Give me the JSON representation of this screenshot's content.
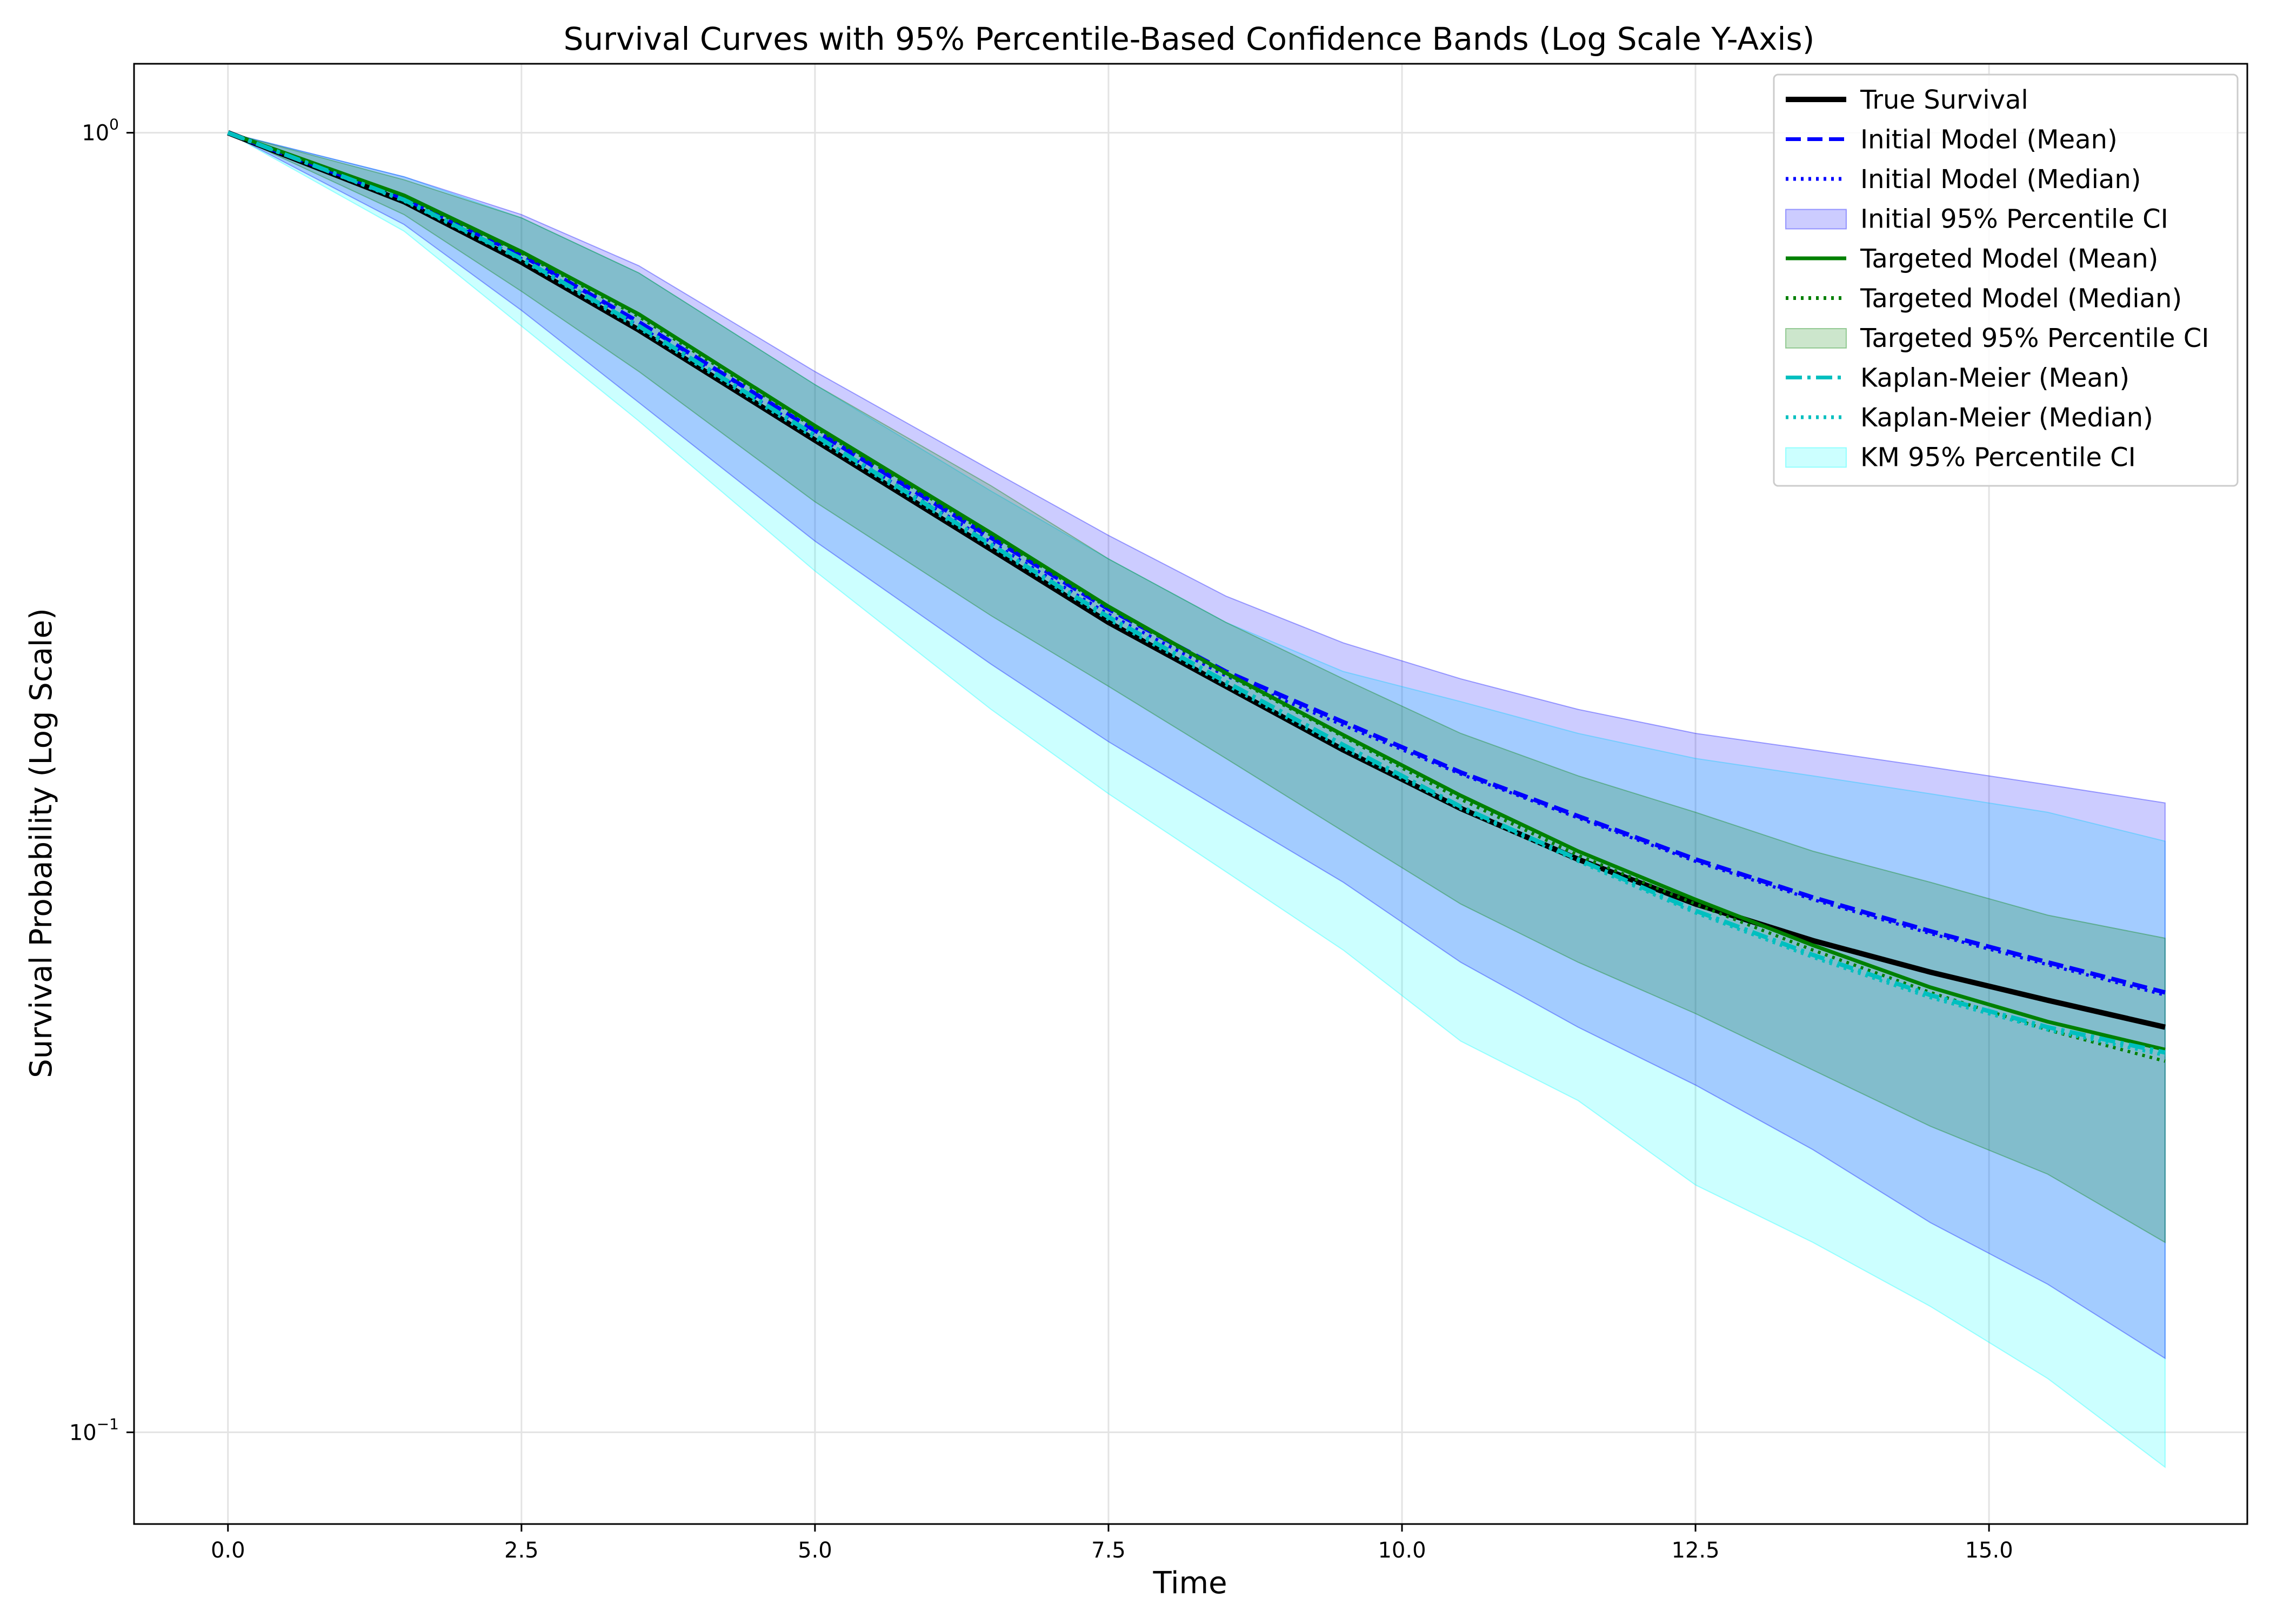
{
  "chart_data": {
    "type": "line",
    "title": "Survival Curves with 95% Percentile-Based Confidence Bands (Log Scale Y-Axis)",
    "xlabel": "Time",
    "ylabel": "Survival Probability (Log Scale)",
    "xlim": [
      -0.8,
      17.2
    ],
    "ylim": [
      0.085,
      1.13
    ],
    "yscale": "log",
    "grid": true,
    "legend_position": "upper right",
    "x_ticks": [
      {
        "value": 0,
        "label": "0.0"
      },
      {
        "value": 2.5,
        "label": "2.5"
      },
      {
        "value": 5,
        "label": "5.0"
      },
      {
        "value": 7.5,
        "label": "7.5"
      },
      {
        "value": 10,
        "label": "10.0"
      },
      {
        "value": 12.5,
        "label": "12.5"
      },
      {
        "value": 15,
        "label": "15.0"
      }
    ],
    "y_ticks": [
      {
        "value": 1.0,
        "base": "10",
        "exp": "0"
      },
      {
        "value": 0.1,
        "base": "10",
        "exp": "−1"
      }
    ],
    "x": [
      0,
      1.5,
      2.5,
      3.5,
      5,
      6.5,
      7.5,
      8.5,
      9.5,
      10.5,
      11.5,
      12.5,
      13.5,
      14.5,
      15.5,
      16.5
    ],
    "bands": [
      {
        "name": "KM 95% Percentile CI",
        "color": "#00ffff",
        "opacity": 0.2,
        "lower": [
          1.0,
          0.84,
          0.71,
          0.6,
          0.46,
          0.36,
          0.31,
          0.27,
          0.235,
          0.2,
          0.18,
          0.155,
          0.14,
          0.125,
          0.11,
          0.094
        ],
        "upper": [
          1.0,
          0.925,
          0.86,
          0.78,
          0.64,
          0.53,
          0.47,
          0.42,
          0.385,
          0.365,
          0.345,
          0.33,
          0.32,
          0.31,
          0.3,
          0.285
        ]
      },
      {
        "name": "Initial 95% Percentile CI",
        "color": "#0000ff",
        "opacity": 0.2,
        "lower": [
          1.0,
          0.85,
          0.73,
          0.62,
          0.485,
          0.39,
          0.34,
          0.3,
          0.265,
          0.23,
          0.205,
          0.185,
          0.165,
          0.145,
          0.13,
          0.114
        ],
        "upper": [
          1.0,
          0.925,
          0.865,
          0.79,
          0.655,
          0.55,
          0.49,
          0.44,
          0.405,
          0.38,
          0.36,
          0.345,
          0.335,
          0.325,
          0.315,
          0.305
        ]
      },
      {
        "name": "Targeted 95% Percentile CI",
        "color": "#008000",
        "opacity": 0.2,
        "lower": [
          1.0,
          0.865,
          0.755,
          0.655,
          0.52,
          0.425,
          0.375,
          0.33,
          0.29,
          0.255,
          0.23,
          0.21,
          0.19,
          0.172,
          0.158,
          0.14
        ],
        "upper": [
          1.0,
          0.92,
          0.86,
          0.78,
          0.64,
          0.535,
          0.47,
          0.42,
          0.38,
          0.345,
          0.32,
          0.3,
          0.28,
          0.265,
          0.25,
          0.24
        ]
      }
    ],
    "series": [
      {
        "name": "True Survival",
        "color": "#000000",
        "dash": "solid",
        "width": 10,
        "values": [
          1.0,
          0.885,
          0.795,
          0.705,
          0.58,
          0.478,
          0.42,
          0.375,
          0.335,
          0.302,
          0.276,
          0.255,
          0.239,
          0.226,
          0.215,
          0.205
        ]
      },
      {
        "name": "Initial Model (Mean)",
        "color": "#0000ff",
        "dash": "dashed",
        "width": 8,
        "values": [
          1.0,
          0.89,
          0.805,
          0.715,
          0.59,
          0.488,
          0.43,
          0.385,
          0.352,
          0.322,
          0.298,
          0.276,
          0.258,
          0.243,
          0.23,
          0.218
        ]
      },
      {
        "name": "Initial Model (Median)",
        "color": "#0000ff",
        "dash": "dotted",
        "width": 6,
        "values": [
          1.0,
          0.888,
          0.8,
          0.71,
          0.585,
          0.484,
          0.426,
          0.382,
          0.35,
          0.321,
          0.297,
          0.275,
          0.257,
          0.242,
          0.229,
          0.217
        ]
      },
      {
        "name": "Targeted Model (Mean)",
        "color": "#008000",
        "dash": "solid",
        "width": 7,
        "values": [
          1.0,
          0.895,
          0.81,
          0.725,
          0.595,
          0.492,
          0.432,
          0.384,
          0.344,
          0.309,
          0.28,
          0.257,
          0.237,
          0.22,
          0.207,
          0.197
        ]
      },
      {
        "name": "Targeted Model (Median)",
        "color": "#008000",
        "dash": "dotted",
        "width": 6,
        "values": [
          1.0,
          0.893,
          0.808,
          0.722,
          0.593,
          0.49,
          0.431,
          0.383,
          0.343,
          0.307,
          0.278,
          0.255,
          0.235,
          0.218,
          0.204,
          0.193
        ]
      },
      {
        "name": "Kaplan-Meier (Mean)",
        "color": "#00bfbf",
        "dash": "dashdot",
        "width": 8,
        "values": [
          1.0,
          0.888,
          0.8,
          0.71,
          0.585,
          0.482,
          0.424,
          0.378,
          0.338,
          0.303,
          0.276,
          0.252,
          0.233,
          0.217,
          0.205,
          0.196
        ]
      },
      {
        "name": "Kaplan-Meier (Median)",
        "color": "#00bfbf",
        "dash": "dotted",
        "width": 6,
        "values": [
          1.0,
          0.886,
          0.798,
          0.707,
          0.582,
          0.48,
          0.422,
          0.376,
          0.336,
          0.302,
          0.275,
          0.251,
          0.232,
          0.216,
          0.204,
          0.195
        ]
      }
    ],
    "legend": [
      {
        "label": "True Survival",
        "kind": "line",
        "color": "#000000",
        "dash": "solid"
      },
      {
        "label": "Initial Model (Mean)",
        "kind": "line",
        "color": "#0000ff",
        "dash": "dashed"
      },
      {
        "label": "Initial Model (Median)",
        "kind": "line",
        "color": "#0000ff",
        "dash": "dotted"
      },
      {
        "label": "Initial 95% Percentile CI",
        "kind": "patch",
        "color": "#0000ff"
      },
      {
        "label": "Targeted Model (Mean)",
        "kind": "line",
        "color": "#008000",
        "dash": "solid"
      },
      {
        "label": "Targeted Model (Median)",
        "kind": "line",
        "color": "#008000",
        "dash": "dotted"
      },
      {
        "label": "Targeted 95% Percentile CI",
        "kind": "patch",
        "color": "#008000"
      },
      {
        "label": "Kaplan-Meier (Mean)",
        "kind": "line",
        "color": "#00bfbf",
        "dash": "dashdot"
      },
      {
        "label": "Kaplan-Meier (Median)",
        "kind": "line",
        "color": "#00bfbf",
        "dash": "dotted"
      },
      {
        "label": "KM 95% Percentile CI",
        "kind": "patch",
        "color": "#00ffff"
      }
    ]
  }
}
